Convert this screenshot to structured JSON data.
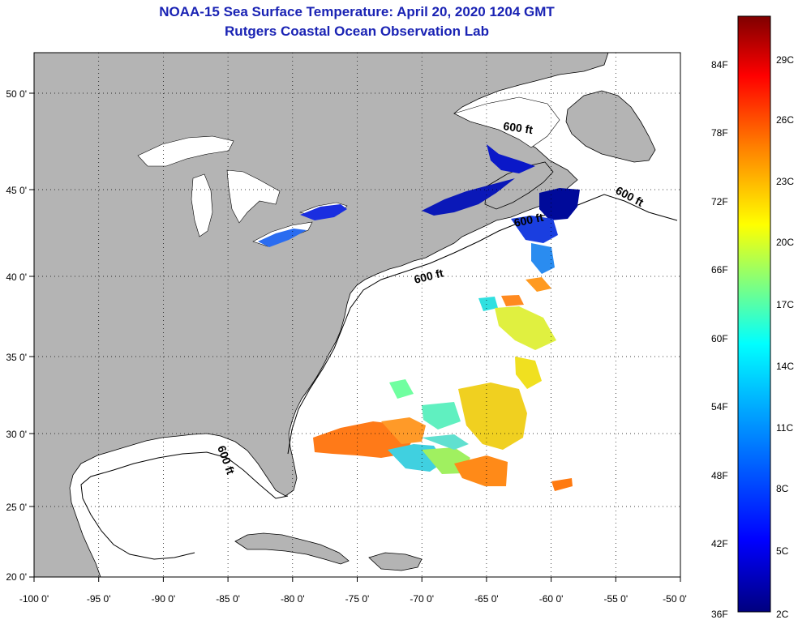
{
  "header": {
    "title": "NOAA-15 Sea Surface Temperature:  April 20, 2020 1204 GMT",
    "subtitle": "Rutgers Coastal Ocean Observation Lab"
  },
  "axes": {
    "longitude_ticks": [
      "-100 0'",
      "-95 0'",
      "-90 0'",
      "-85 0'",
      "-80 0'",
      "-75 0'",
      "-70 0'",
      "-65 0'",
      "-60 0'",
      "-55 0'",
      "-50 0'"
    ],
    "latitude_ticks": [
      "50 0'",
      "45 0'",
      "40 0'",
      "35 0'",
      "30 0'",
      "25 0'",
      "20 0'"
    ]
  },
  "map": {
    "lon_range": [
      -100,
      -50
    ],
    "lat_range": [
      20,
      52
    ],
    "land_color": "#b4b4b4",
    "ocean_color": "#ffffff",
    "grid": "dotted",
    "contour_labels": [
      "600 ft",
      "600 ft",
      "600 ft",
      "600 ft",
      "600 ft"
    ]
  },
  "colorbar": {
    "fahrenheit_labels": [
      "84F",
      "78F",
      "72F",
      "66F",
      "60F",
      "54F",
      "48F",
      "42F",
      "36F"
    ],
    "celsius_labels": [
      "29C",
      "26C",
      "23C",
      "20C",
      "17C",
      "14C",
      "11C",
      "8C",
      "5C",
      "2C"
    ],
    "colors": [
      "#00007f",
      "#0000ff",
      "#007fff",
      "#00ffff",
      "#7fff7f",
      "#ffff00",
      "#ff7f00",
      "#ff0000",
      "#7f0000"
    ]
  }
}
